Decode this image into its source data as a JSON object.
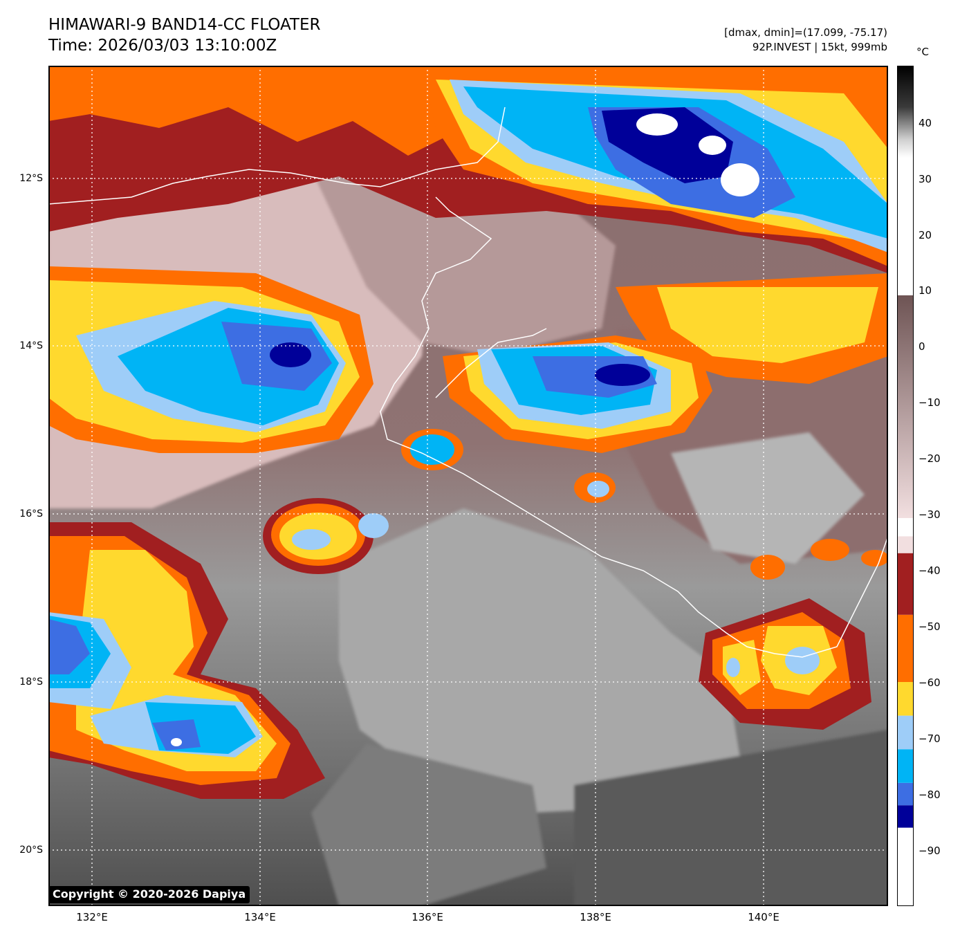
{
  "header": {
    "title_line1": "HIMAWARI-9 BAND14-CC FLOATER",
    "title_line2": "Time: 2026/03/03 13:10:00Z",
    "stats_line": "[dmax, dmin]=(17.099, -75.17)",
    "storm_line": "92P.INVEST | 15kt, 999mb"
  },
  "colorbar": {
    "unit": "°C",
    "labels": [
      "40",
      "30",
      "20",
      "10",
      "0",
      "−10",
      "−20",
      "−30",
      "−40",
      "−50",
      "−60",
      "−70",
      "−80",
      "−90"
    ],
    "segments": [
      {
        "from": -100,
        "to": -86,
        "color": "#ffffff"
      },
      {
        "from": -86,
        "to": -82,
        "color": "#000099"
      },
      {
        "from": -82,
        "to": -78,
        "color": "#3d6ee3"
      },
      {
        "from": -78,
        "to": -72,
        "color": "#00b4f5"
      },
      {
        "from": -72,
        "to": -66,
        "color": "#9ecdf8"
      },
      {
        "from": -66,
        "to": -60,
        "color": "#ffd92e"
      },
      {
        "from": -60,
        "to": -48,
        "color": "#ff6e00"
      },
      {
        "from": -48,
        "to": -37,
        "color": "#a11f20"
      },
      {
        "from": -37,
        "to": -34,
        "color": "#f2dfe0"
      }
    ]
  },
  "map": {
    "lat_labels": [
      "12°S",
      "14°S",
      "16°S",
      "18°S",
      "20°S"
    ],
    "lon_labels": [
      "132°E",
      "134°E",
      "136°E",
      "138°E",
      "140°E"
    ],
    "grid": "on"
  },
  "footer": {
    "copyright": "Copyright © 2020-2026 Dapiya"
  }
}
